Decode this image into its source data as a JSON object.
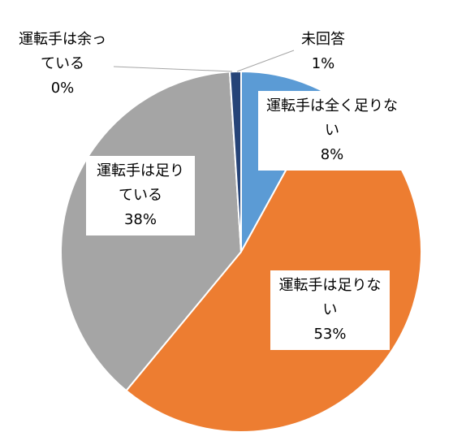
{
  "chart_data": {
    "type": "pie",
    "categories": [
      "運転手は全く足りない",
      "運転手は足りない",
      "運転手は足りている",
      "運転手は余っている",
      "未回答"
    ],
    "values": [
      8,
      53,
      38,
      0,
      1
    ],
    "value_labels": [
      "8%",
      "53%",
      "38%",
      "0%",
      "1%"
    ],
    "colors": [
      "#5b9bd5",
      "#ed7d31",
      "#a5a5a5",
      "#ffc000",
      "#264478"
    ]
  }
}
